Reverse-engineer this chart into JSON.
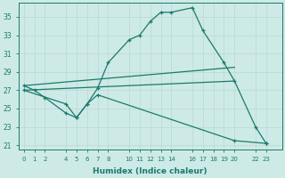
{
  "xlabel": "Humidex (Indice chaleur)",
  "bg_color": "#ceeae6",
  "line_color": "#1a7a6e",
  "grid_color": "#b8d8d4",
  "xticks": [
    0,
    1,
    2,
    4,
    5,
    6,
    7,
    8,
    10,
    11,
    12,
    13,
    14,
    16,
    17,
    18,
    19,
    20,
    22,
    23
  ],
  "yticks": [
    21,
    23,
    25,
    27,
    29,
    31,
    33,
    35
  ],
  "ylim": [
    20.5,
    36.5
  ],
  "xlim": [
    -0.5,
    24.5
  ],
  "curve1": [
    [
      0,
      27.5
    ],
    [
      1,
      27.0
    ],
    [
      2,
      26.2
    ],
    [
      4,
      24.5
    ],
    [
      5,
      24.0
    ],
    [
      6,
      25.5
    ],
    [
      7,
      27.2
    ],
    [
      8,
      30.0
    ],
    [
      10,
      32.5
    ],
    [
      11,
      33.0
    ],
    [
      12,
      34.5
    ],
    [
      13,
      35.5
    ],
    [
      14,
      35.5
    ],
    [
      16,
      36.0
    ],
    [
      17,
      33.5
    ],
    [
      19,
      30.0
    ],
    [
      20,
      28.0
    ],
    [
      22,
      23.0
    ],
    [
      23,
      21.2
    ]
  ],
  "curve2_straight_rising": [
    [
      0,
      27.5
    ],
    [
      20,
      29.5
    ]
  ],
  "curve3_straight_flat": [
    [
      0,
      27.0
    ],
    [
      20,
      28.0
    ]
  ],
  "curve4_descending": [
    [
      0,
      27.0
    ],
    [
      4,
      25.5
    ],
    [
      5,
      24.0
    ],
    [
      6,
      25.5
    ],
    [
      7,
      26.5
    ],
    [
      20,
      21.5
    ],
    [
      23,
      21.2
    ]
  ]
}
